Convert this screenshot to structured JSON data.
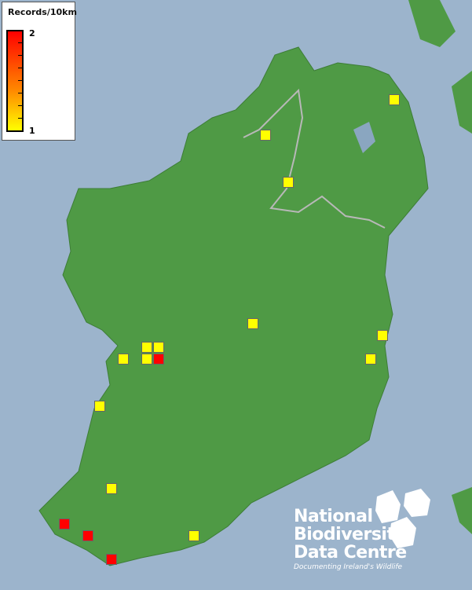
{
  "legend": {
    "title": "Records/10km",
    "max_label": "2",
    "min_label": "1",
    "min_color": "#ffff00",
    "max_color": "#ff0000"
  },
  "records": [
    {
      "value": 1
    },
    {
      "value": 1
    },
    {
      "value": 1
    },
    {
      "value": 1
    },
    {
      "value": 1
    },
    {
      "value": 1
    },
    {
      "value": 1
    },
    {
      "value": 1
    },
    {
      "value": 1
    },
    {
      "value": 1
    },
    {
      "value": 2
    },
    {
      "value": 1
    },
    {
      "value": 1
    },
    {
      "value": 2
    },
    {
      "value": 2
    },
    {
      "value": 1
    },
    {
      "value": 2
    }
  ],
  "logo": {
    "line1": "National",
    "line2": "Biodiversity",
    "line3": "Data Centre",
    "tagline": "Documenting Ireland's Wildlife"
  },
  "colors": {
    "sea": "#9cb4cc",
    "land": "#4f9a45",
    "border": "#b0b0b0"
  }
}
